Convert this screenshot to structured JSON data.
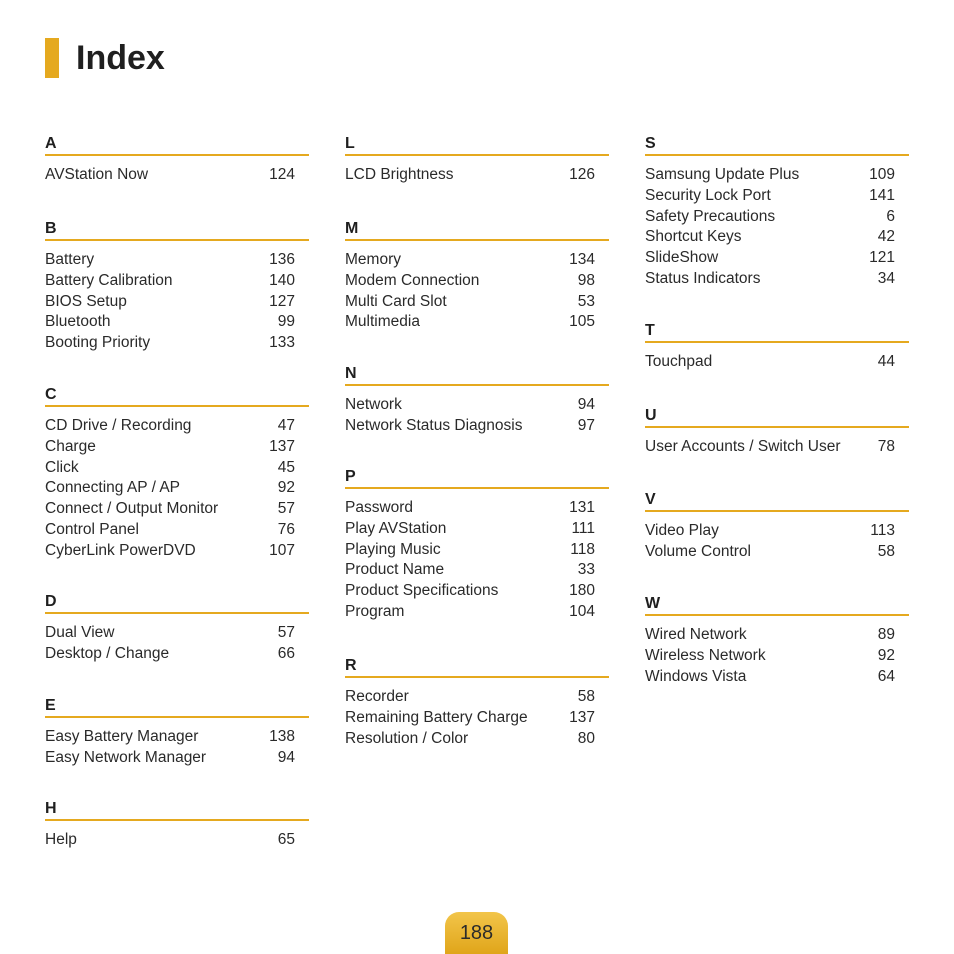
{
  "title": "Index",
  "page_number": "188",
  "accent_color": "#e5a91f",
  "columns": [
    {
      "sections": [
        {
          "letter": "A",
          "entries": [
            {
              "term": "AVStation Now",
              "page": "124"
            }
          ]
        },
        {
          "letter": "B",
          "entries": [
            {
              "term": "Battery",
              "page": "136"
            },
            {
              "term": "Battery Calibration",
              "page": "140"
            },
            {
              "term": "BIOS Setup",
              "page": "127"
            },
            {
              "term": "Bluetooth",
              "page": "99"
            },
            {
              "term": "Booting Priority",
              "page": "133"
            }
          ]
        },
        {
          "letter": "C",
          "entries": [
            {
              "term": "CD Drive / Recording",
              "page": "47"
            },
            {
              "term": "Charge",
              "page": "137"
            },
            {
              "term": "Click",
              "page": "45"
            },
            {
              "term": "Connecting AP / AP",
              "page": "92"
            },
            {
              "term": "Connect / Output Monitor",
              "page": "57"
            },
            {
              "term": "Control Panel",
              "page": "76"
            },
            {
              "term": "CyberLink PowerDVD",
              "page": "107"
            }
          ]
        },
        {
          "letter": "D",
          "entries": [
            {
              "term": "Dual View",
              "page": "57"
            },
            {
              "term": "Desktop / Change",
              "page": "66"
            }
          ]
        },
        {
          "letter": "E",
          "entries": [
            {
              "term": "Easy Battery Manager",
              "page": "138"
            },
            {
              "term": "Easy Network Manager",
              "page": "94"
            }
          ]
        },
        {
          "letter": "H",
          "entries": [
            {
              "term": "Help",
              "page": "65"
            }
          ]
        }
      ]
    },
    {
      "sections": [
        {
          "letter": "L",
          "entries": [
            {
              "term": "LCD Brightness",
              "page": "126"
            }
          ]
        },
        {
          "letter": "M",
          "entries": [
            {
              "term": "Memory",
              "page": "134"
            },
            {
              "term": "Modem Connection",
              "page": "98"
            },
            {
              "term": "Multi Card Slot",
              "page": "53"
            },
            {
              "term": "Multimedia",
              "page": "105"
            }
          ]
        },
        {
          "letter": "N",
          "entries": [
            {
              "term": "Network",
              "page": "94"
            },
            {
              "term": "Network Status Diagnosis",
              "page": "97"
            }
          ]
        },
        {
          "letter": "P",
          "entries": [
            {
              "term": "Password",
              "page": "131"
            },
            {
              "term": "Play AVStation",
              "page": "111"
            },
            {
              "term": "Playing Music",
              "page": "118"
            },
            {
              "term": "Product Name",
              "page": "33"
            },
            {
              "term": "Product Specifications",
              "page": "180"
            },
            {
              "term": "Program",
              "page": "104"
            }
          ]
        },
        {
          "letter": "R",
          "entries": [
            {
              "term": "Recorder",
              "page": "58"
            },
            {
              "term": "Remaining Battery Charge",
              "page": "137"
            },
            {
              "term": "Resolution / Color",
              "page": "80"
            }
          ]
        }
      ]
    },
    {
      "sections": [
        {
          "letter": "S",
          "entries": [
            {
              "term": "Samsung Update Plus",
              "page": "109"
            },
            {
              "term": "Security Lock Port",
              "page": "141"
            },
            {
              "term": "Safety Precautions",
              "page": "6"
            },
            {
              "term": "Shortcut Keys",
              "page": "42"
            },
            {
              "term": "SlideShow",
              "page": "121"
            },
            {
              "term": "Status Indicators",
              "page": "34"
            }
          ]
        },
        {
          "letter": "T",
          "entries": [
            {
              "term": "Touchpad",
              "page": "44"
            }
          ]
        },
        {
          "letter": "U",
          "entries": [
            {
              "term": "User Accounts / Switch User",
              "page": "78"
            }
          ]
        },
        {
          "letter": "V",
          "entries": [
            {
              "term": "Video Play",
              "page": "113"
            },
            {
              "term": "Volume Control",
              "page": "58"
            }
          ]
        },
        {
          "letter": "W",
          "entries": [
            {
              "term": "Wired Network",
              "page": "89"
            },
            {
              "term": "Wireless Network",
              "page": "92"
            },
            {
              "term": "Windows Vista",
              "page": "64"
            }
          ]
        }
      ]
    }
  ]
}
